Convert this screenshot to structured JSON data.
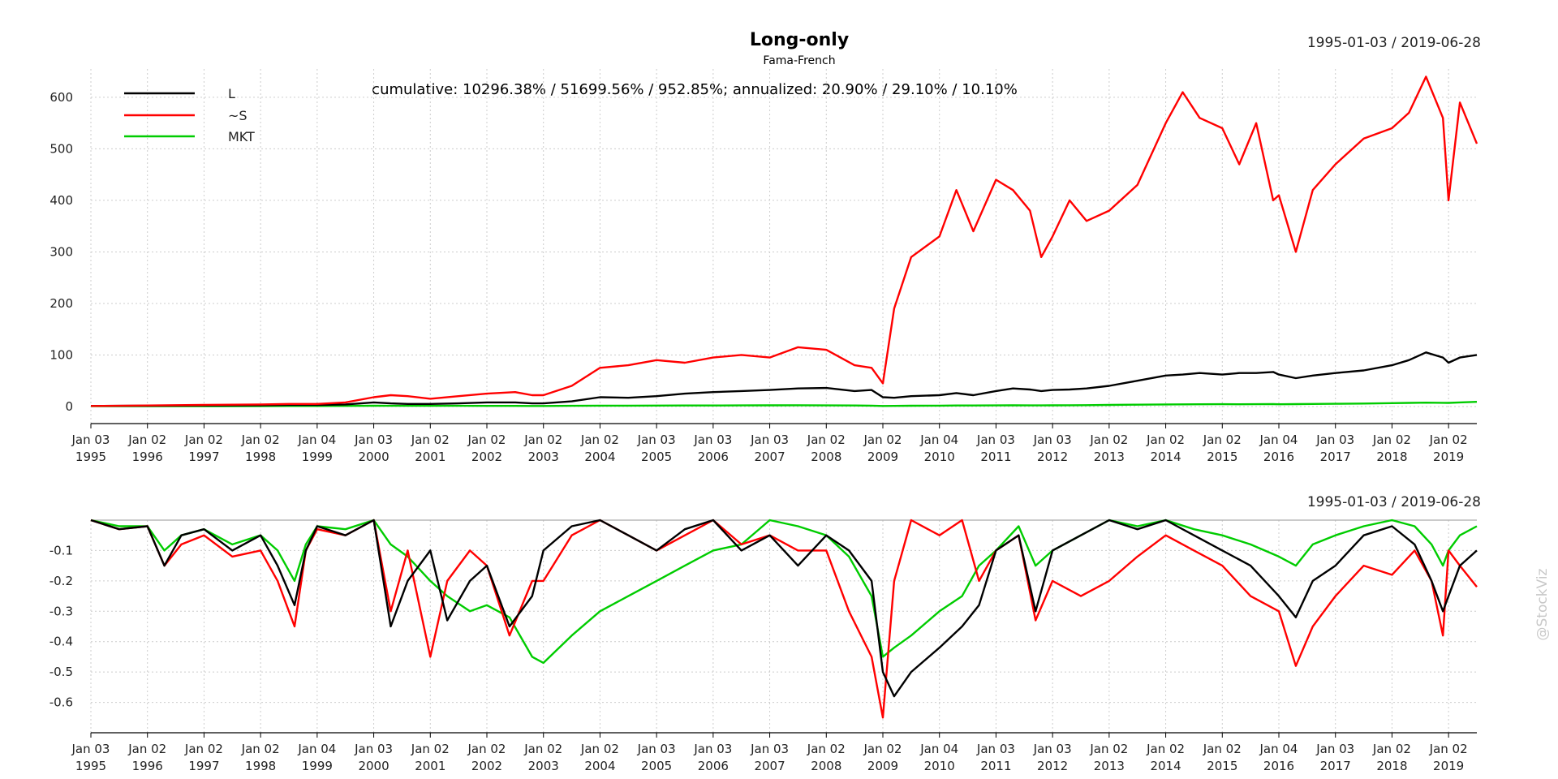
{
  "chart_data": [
    {
      "type": "line",
      "title": "Long-only",
      "subtitle": "Fama-French",
      "date_range": "1995-01-03 / 2019-06-28",
      "annotation": "cumulative: 10296.38% / 51699.56% / 952.85%; annualized: 20.90% / 29.10% / 10.10%",
      "legend": {
        "placement": "top-left",
        "entries": [
          "L",
          "~S",
          "MKT"
        ]
      },
      "grid": true,
      "xlim": [
        1995.0,
        2019.5
      ],
      "ylim": [
        -30,
        655
      ],
      "y_ticks": [
        0,
        100,
        200,
        300,
        400,
        500,
        600
      ],
      "x_tick_labels": [
        [
          "Jan 03",
          "1995"
        ],
        [
          "Jan 02",
          "1996"
        ],
        [
          "Jan 02",
          "1997"
        ],
        [
          "Jan 02",
          "1998"
        ],
        [
          "Jan 04",
          "1999"
        ],
        [
          "Jan 03",
          "2000"
        ],
        [
          "Jan 02",
          "2001"
        ],
        [
          "Jan 02",
          "2002"
        ],
        [
          "Jan 02",
          "2003"
        ],
        [
          "Jan 02",
          "2004"
        ],
        [
          "Jan 03",
          "2005"
        ],
        [
          "Jan 03",
          "2006"
        ],
        [
          "Jan 03",
          "2007"
        ],
        [
          "Jan 02",
          "2008"
        ],
        [
          "Jan 02",
          "2009"
        ],
        [
          "Jan 04",
          "2010"
        ],
        [
          "Jan 03",
          "2011"
        ],
        [
          "Jan 03",
          "2012"
        ],
        [
          "Jan 02",
          "2013"
        ],
        [
          "Jan 02",
          "2014"
        ],
        [
          "Jan 02",
          "2015"
        ],
        [
          "Jan 04",
          "2016"
        ],
        [
          "Jan 03",
          "2017"
        ],
        [
          "Jan 02",
          "2018"
        ],
        [
          "Jan 02",
          "2019"
        ]
      ],
      "x": [
        1995.0,
        1996.0,
        1997.0,
        1998.0,
        1998.5,
        1999.0,
        1999.5,
        2000.0,
        2000.3,
        2000.6,
        2001.0,
        2001.5,
        2002.0,
        2002.5,
        2002.8,
        2003.0,
        2003.5,
        2004.0,
        2004.5,
        2005.0,
        2005.5,
        2006.0,
        2006.5,
        2007.0,
        2007.5,
        2008.0,
        2008.5,
        2008.8,
        2009.0,
        2009.2,
        2009.5,
        2010.0,
        2010.3,
        2010.6,
        2011.0,
        2011.3,
        2011.6,
        2011.8,
        2012.0,
        2012.3,
        2012.6,
        2013.0,
        2013.5,
        2014.0,
        2014.3,
        2014.6,
        2015.0,
        2015.3,
        2015.6,
        2015.9,
        2016.0,
        2016.3,
        2016.6,
        2017.0,
        2017.5,
        2018.0,
        2018.3,
        2018.6,
        2018.9,
        2019.0,
        2019.2,
        2019.5
      ],
      "series": [
        {
          "name": "L",
          "color": "#000000",
          "values": [
            1,
            1.5,
            2,
            2.5,
            3,
            3,
            4,
            8,
            6,
            5,
            5,
            6,
            8,
            8,
            6,
            6,
            10,
            18,
            17,
            20,
            25,
            28,
            30,
            32,
            35,
            36,
            30,
            32,
            18,
            17,
            20,
            22,
            26,
            22,
            30,
            35,
            33,
            30,
            32,
            33,
            35,
            40,
            50,
            60,
            62,
            65,
            62,
            65,
            65,
            67,
            62,
            55,
            60,
            65,
            70,
            80,
            90,
            105,
            95,
            85,
            95,
            100
          ]
        },
        {
          "name": "~S",
          "color": "#ff0000",
          "values": [
            1,
            2,
            3,
            4,
            5,
            5,
            8,
            18,
            22,
            20,
            15,
            20,
            25,
            28,
            22,
            22,
            40,
            75,
            80,
            90,
            85,
            95,
            100,
            95,
            115,
            110,
            80,
            75,
            45,
            190,
            290,
            330,
            420,
            340,
            440,
            420,
            380,
            290,
            330,
            400,
            360,
            380,
            430,
            550,
            610,
            560,
            540,
            470,
            550,
            400,
            410,
            300,
            420,
            470,
            520,
            540,
            570,
            640,
            560,
            400,
            590,
            510
          ]
        },
        {
          "name": "MKT",
          "color": "#00cc00",
          "values": [
            0.5,
            0.6,
            0.7,
            0.9,
            1.0,
            1.1,
            1.2,
            1.5,
            1.4,
            1.3,
            1.3,
            1.3,
            1.2,
            1.2,
            1.0,
            1.0,
            1.3,
            1.6,
            1.7,
            1.8,
            1.9,
            2.0,
            2.2,
            2.3,
            2.4,
            2.2,
            1.9,
            1.6,
            1.1,
            1.2,
            1.5,
            1.7,
            2.0,
            1.9,
            2.2,
            2.3,
            2.2,
            2.1,
            2.3,
            2.5,
            2.6,
            3.0,
            3.5,
            4.0,
            4.2,
            4.4,
            4.5,
            4.4,
            4.5,
            4.6,
            4.4,
            4.6,
            5.0,
            5.2,
            5.8,
            6.5,
            7.0,
            7.5,
            7.2,
            7.0,
            8.0,
            9.0
          ]
        }
      ]
    },
    {
      "type": "line",
      "date_range": "1995-01-03 / 2019-06-28",
      "grid": true,
      "xlim": [
        1995.0,
        2019.5
      ],
      "ylim": [
        -0.7,
        0.0
      ],
      "y_ticks": [
        -0.1,
        -0.2,
        -0.3,
        -0.4,
        -0.5,
        -0.6
      ],
      "x_tick_labels": [
        [
          "Jan 03",
          "1995"
        ],
        [
          "Jan 02",
          "1996"
        ],
        [
          "Jan 02",
          "1997"
        ],
        [
          "Jan 02",
          "1998"
        ],
        [
          "Jan 04",
          "1999"
        ],
        [
          "Jan 03",
          "2000"
        ],
        [
          "Jan 02",
          "2001"
        ],
        [
          "Jan 02",
          "2002"
        ],
        [
          "Jan 02",
          "2003"
        ],
        [
          "Jan 02",
          "2004"
        ],
        [
          "Jan 03",
          "2005"
        ],
        [
          "Jan 03",
          "2006"
        ],
        [
          "Jan 03",
          "2007"
        ],
        [
          "Jan 02",
          "2008"
        ],
        [
          "Jan 02",
          "2009"
        ],
        [
          "Jan 04",
          "2010"
        ],
        [
          "Jan 03",
          "2011"
        ],
        [
          "Jan 03",
          "2012"
        ],
        [
          "Jan 02",
          "2013"
        ],
        [
          "Jan 02",
          "2014"
        ],
        [
          "Jan 02",
          "2015"
        ],
        [
          "Jan 04",
          "2016"
        ],
        [
          "Jan 03",
          "2017"
        ],
        [
          "Jan 02",
          "2018"
        ],
        [
          "Jan 02",
          "2019"
        ]
      ],
      "x": [
        1995.0,
        1995.5,
        1996.0,
        1996.3,
        1996.6,
        1997.0,
        1997.5,
        1998.0,
        1998.3,
        1998.6,
        1998.8,
        1999.0,
        1999.5,
        2000.0,
        2000.3,
        2000.6,
        2001.0,
        2001.3,
        2001.7,
        2002.0,
        2002.4,
        2002.8,
        2003.0,
        2003.5,
        2004.0,
        2004.5,
        2005.0,
        2005.5,
        2006.0,
        2006.5,
        2007.0,
        2007.5,
        2008.0,
        2008.4,
        2008.8,
        2009.0,
        2009.2,
        2009.5,
        2010.0,
        2010.4,
        2010.7,
        2011.0,
        2011.4,
        2011.7,
        2012.0,
        2012.5,
        2013.0,
        2013.5,
        2014.0,
        2014.5,
        2015.0,
        2015.5,
        2016.0,
        2016.3,
        2016.6,
        2017.0,
        2017.5,
        2018.0,
        2018.4,
        2018.7,
        2018.9,
        2019.0,
        2019.2,
        2019.5
      ],
      "series": [
        {
          "name": "L",
          "color": "#000000",
          "values": [
            0,
            -0.03,
            -0.02,
            -0.15,
            -0.05,
            -0.03,
            -0.1,
            -0.05,
            -0.15,
            -0.28,
            -0.1,
            -0.02,
            -0.05,
            0,
            -0.35,
            -0.2,
            -0.1,
            -0.33,
            -0.2,
            -0.15,
            -0.35,
            -0.25,
            -0.1,
            -0.02,
            0,
            -0.05,
            -0.1,
            -0.03,
            0,
            -0.1,
            -0.05,
            -0.15,
            -0.05,
            -0.1,
            -0.2,
            -0.5,
            -0.58,
            -0.5,
            -0.42,
            -0.35,
            -0.28,
            -0.1,
            -0.05,
            -0.3,
            -0.1,
            -0.05,
            0,
            -0.03,
            0,
            -0.05,
            -0.1,
            -0.15,
            -0.25,
            -0.32,
            -0.2,
            -0.15,
            -0.05,
            -0.02,
            -0.08,
            -0.2,
            -0.3,
            -0.25,
            -0.15,
            -0.1
          ]
        },
        {
          "name": "~S",
          "color": "#ff0000",
          "values": [
            0,
            -0.03,
            -0.02,
            -0.15,
            -0.08,
            -0.05,
            -0.12,
            -0.1,
            -0.2,
            -0.35,
            -0.1,
            -0.03,
            -0.05,
            0,
            -0.3,
            -0.1,
            -0.45,
            -0.2,
            -0.1,
            -0.15,
            -0.38,
            -0.2,
            -0.2,
            -0.05,
            0,
            -0.05,
            -0.1,
            -0.05,
            0,
            -0.08,
            -0.05,
            -0.1,
            -0.1,
            -0.3,
            -0.45,
            -0.65,
            -0.2,
            0,
            -0.05,
            0,
            -0.2,
            -0.1,
            -0.05,
            -0.33,
            -0.2,
            -0.25,
            -0.2,
            -0.12,
            -0.05,
            -0.1,
            -0.15,
            -0.25,
            -0.3,
            -0.48,
            -0.35,
            -0.25,
            -0.15,
            -0.18,
            -0.1,
            -0.2,
            -0.38,
            -0.1,
            -0.15,
            -0.22
          ]
        },
        {
          "name": "MKT",
          "color": "#00cc00",
          "values": [
            0,
            -0.02,
            -0.02,
            -0.1,
            -0.05,
            -0.03,
            -0.08,
            -0.05,
            -0.1,
            -0.2,
            -0.08,
            -0.02,
            -0.03,
            0,
            -0.08,
            -0.12,
            -0.2,
            -0.25,
            -0.3,
            -0.28,
            -0.32,
            -0.45,
            -0.47,
            -0.38,
            -0.3,
            -0.25,
            -0.2,
            -0.15,
            -0.1,
            -0.08,
            0,
            -0.02,
            -0.05,
            -0.12,
            -0.25,
            -0.45,
            -0.42,
            -0.38,
            -0.3,
            -0.25,
            -0.15,
            -0.1,
            -0.02,
            -0.15,
            -0.1,
            -0.05,
            0,
            -0.02,
            0,
            -0.03,
            -0.05,
            -0.08,
            -0.12,
            -0.15,
            -0.08,
            -0.05,
            -0.02,
            0,
            -0.02,
            -0.08,
            -0.15,
            -0.1,
            -0.05,
            -0.02
          ]
        }
      ]
    }
  ],
  "watermark": "@StockViz"
}
